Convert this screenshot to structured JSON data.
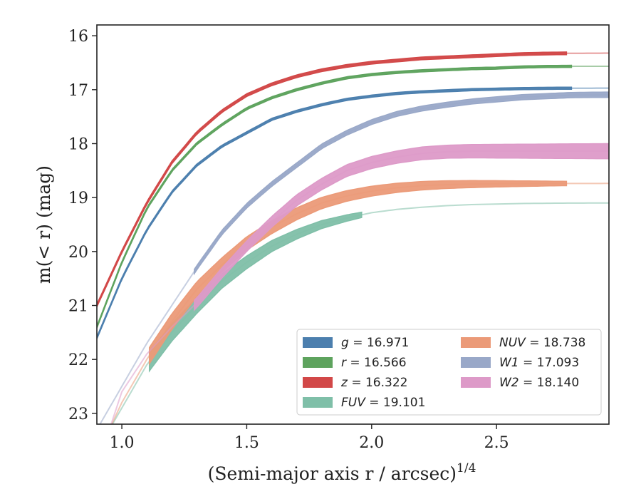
{
  "chart_data": {
    "type": "line",
    "xlabel": "(Semi-major axis r / arcsec)",
    "xlabel_superscript": "1/4",
    "ylabel": "m(< r) (mag)",
    "xlim": [
      0.9,
      2.95
    ],
    "ylim": [
      23.2,
      15.8
    ],
    "y_inverted": true,
    "grid": false,
    "legend_position": "lower-right",
    "legend_columns": 2,
    "xticks": [
      1.0,
      1.5,
      2.0,
      2.5
    ],
    "xtick_labels": [
      "1.0",
      "1.5",
      "2.0",
      "2.5"
    ],
    "yticks": [
      16,
      17,
      18,
      19,
      20,
      21,
      22,
      23
    ],
    "ytick_labels": [
      "16",
      "17",
      "18",
      "19",
      "20",
      "21",
      "22",
      "23"
    ],
    "series": [
      {
        "key": "g",
        "name": "g = 16.971",
        "color": "#4c7fae",
        "total_mag": 16.971,
        "model": [
          [
            0.9,
            21.6
          ],
          [
            1.0,
            20.5
          ],
          [
            1.1,
            19.6
          ],
          [
            1.2,
            18.9
          ],
          [
            1.3,
            18.4
          ],
          [
            1.4,
            18.05
          ],
          [
            1.5,
            17.8
          ],
          [
            1.6,
            17.55
          ],
          [
            1.7,
            17.4
          ],
          [
            1.8,
            17.28
          ],
          [
            1.9,
            17.18
          ],
          [
            2.0,
            17.12
          ],
          [
            2.1,
            17.07
          ],
          [
            2.2,
            17.04
          ],
          [
            2.3,
            17.02
          ],
          [
            2.4,
            17.0
          ],
          [
            2.5,
            16.99
          ],
          [
            2.6,
            16.98
          ],
          [
            2.7,
            16.975
          ],
          [
            2.8,
            16.972
          ],
          [
            2.95,
            16.971
          ]
        ],
        "profile_range": [
          0.9,
          2.8
        ],
        "band_width": [
          0.04,
          0.04
        ]
      },
      {
        "key": "r",
        "name": "r = 16.566",
        "color": "#5ea35e",
        "total_mag": 16.566,
        "model": [
          [
            0.9,
            21.4
          ],
          [
            1.0,
            20.2
          ],
          [
            1.1,
            19.2
          ],
          [
            1.2,
            18.5
          ],
          [
            1.3,
            18.0
          ],
          [
            1.4,
            17.65
          ],
          [
            1.5,
            17.35
          ],
          [
            1.6,
            17.15
          ],
          [
            1.7,
            17.0
          ],
          [
            1.8,
            16.88
          ],
          [
            1.9,
            16.78
          ],
          [
            2.0,
            16.72
          ],
          [
            2.1,
            16.68
          ],
          [
            2.2,
            16.65
          ],
          [
            2.3,
            16.63
          ],
          [
            2.4,
            16.61
          ],
          [
            2.5,
            16.6
          ],
          [
            2.6,
            16.58
          ],
          [
            2.7,
            16.57
          ],
          [
            2.8,
            16.567
          ],
          [
            2.95,
            16.566
          ]
        ],
        "profile_range": [
          0.9,
          2.8
        ],
        "band_width": [
          0.04,
          0.04
        ]
      },
      {
        "key": "z",
        "name": "z = 16.322",
        "color": "#d24848",
        "total_mag": 16.322,
        "model": [
          [
            0.9,
            21.0
          ],
          [
            1.0,
            20.0
          ],
          [
            1.1,
            19.1
          ],
          [
            1.2,
            18.35
          ],
          [
            1.3,
            17.8
          ],
          [
            1.4,
            17.4
          ],
          [
            1.5,
            17.1
          ],
          [
            1.6,
            16.9
          ],
          [
            1.7,
            16.75
          ],
          [
            1.8,
            16.64
          ],
          [
            1.9,
            16.56
          ],
          [
            2.0,
            16.5
          ],
          [
            2.1,
            16.46
          ],
          [
            2.2,
            16.42
          ],
          [
            2.3,
            16.4
          ],
          [
            2.4,
            16.38
          ],
          [
            2.5,
            16.36
          ],
          [
            2.6,
            16.34
          ],
          [
            2.7,
            16.33
          ],
          [
            2.8,
            16.325
          ],
          [
            2.95,
            16.322
          ]
        ],
        "profile_range": [
          0.9,
          2.78
        ],
        "band_width": [
          0.05,
          0.05
        ]
      },
      {
        "key": "FUV",
        "name": "FUV = 19.101",
        "color": "#7fbfa8",
        "total_mag": 19.101,
        "model": [
          [
            0.95,
            23.3
          ],
          [
            1.0,
            22.9
          ],
          [
            1.1,
            22.1
          ],
          [
            1.2,
            21.5
          ],
          [
            1.3,
            21.0
          ],
          [
            1.4,
            20.55
          ],
          [
            1.5,
            20.2
          ],
          [
            1.6,
            19.9
          ],
          [
            1.7,
            19.68
          ],
          [
            1.8,
            19.5
          ],
          [
            1.9,
            19.38
          ],
          [
            2.0,
            19.28
          ],
          [
            2.1,
            19.22
          ],
          [
            2.2,
            19.18
          ],
          [
            2.3,
            19.15
          ],
          [
            2.4,
            19.13
          ],
          [
            2.5,
            19.12
          ],
          [
            2.6,
            19.11
          ],
          [
            2.7,
            19.105
          ],
          [
            2.8,
            19.102
          ],
          [
            2.95,
            19.101
          ]
        ],
        "profile_range": [
          1.11,
          1.96
        ],
        "band_width": [
          0.35,
          0.1
        ]
      },
      {
        "key": "NUV",
        "name": "NUV = 18.738",
        "color": "#eb9a78",
        "total_mag": 18.738,
        "model": [
          [
            0.95,
            23.3
          ],
          [
            1.0,
            22.8
          ],
          [
            1.1,
            22.0
          ],
          [
            1.2,
            21.3
          ],
          [
            1.3,
            20.7
          ],
          [
            1.4,
            20.25
          ],
          [
            1.5,
            19.85
          ],
          [
            1.6,
            19.55
          ],
          [
            1.7,
            19.3
          ],
          [
            1.8,
            19.1
          ],
          [
            1.9,
            18.97
          ],
          [
            2.0,
            18.88
          ],
          [
            2.1,
            18.82
          ],
          [
            2.2,
            18.78
          ],
          [
            2.3,
            18.76
          ],
          [
            2.4,
            18.75
          ],
          [
            2.5,
            18.745
          ],
          [
            2.6,
            18.742
          ],
          [
            2.7,
            18.74
          ],
          [
            2.8,
            18.739
          ],
          [
            2.95,
            18.738
          ]
        ],
        "profile_range": [
          1.11,
          2.78
        ],
        "band_width": [
          0.3,
          0.08
        ]
      },
      {
        "key": "W1",
        "name": "W1 = 17.093",
        "color": "#99a8c8",
        "total_mag": 17.093,
        "model": [
          [
            0.9,
            23.3
          ],
          [
            1.0,
            22.5
          ],
          [
            1.1,
            21.7
          ],
          [
            1.2,
            21.0
          ],
          [
            1.3,
            20.3
          ],
          [
            1.4,
            19.65
          ],
          [
            1.5,
            19.15
          ],
          [
            1.6,
            18.75
          ],
          [
            1.7,
            18.4
          ],
          [
            1.8,
            18.05
          ],
          [
            1.9,
            17.8
          ],
          [
            2.0,
            17.6
          ],
          [
            2.1,
            17.45
          ],
          [
            2.2,
            17.35
          ],
          [
            2.3,
            17.28
          ],
          [
            2.4,
            17.22
          ],
          [
            2.5,
            17.18
          ],
          [
            2.6,
            17.14
          ],
          [
            2.7,
            17.12
          ],
          [
            2.8,
            17.1
          ],
          [
            2.95,
            17.093
          ]
        ],
        "profile_range": [
          1.29,
          2.95
        ],
        "band_width": [
          0.08,
          0.1
        ]
      },
      {
        "key": "W2",
        "name": "W2 = 18.140",
        "color": "#dd9ac8",
        "total_mag": 18.14,
        "model": [
          [
            0.95,
            23.3
          ],
          [
            1.0,
            22.6
          ],
          [
            1.1,
            21.9
          ],
          [
            1.2,
            21.4
          ],
          [
            1.3,
            20.95
          ],
          [
            1.4,
            20.4
          ],
          [
            1.5,
            19.9
          ],
          [
            1.6,
            19.45
          ],
          [
            1.7,
            19.05
          ],
          [
            1.8,
            18.75
          ],
          [
            1.9,
            18.5
          ],
          [
            2.0,
            18.35
          ],
          [
            2.1,
            18.25
          ],
          [
            2.2,
            18.18
          ],
          [
            2.3,
            18.15
          ],
          [
            2.4,
            18.14
          ],
          [
            2.5,
            18.14
          ],
          [
            2.6,
            18.14
          ],
          [
            2.7,
            18.14
          ],
          [
            2.8,
            18.14
          ],
          [
            2.95,
            18.14
          ]
        ],
        "profile_range": [
          1.29,
          2.95
        ],
        "band_width": [
          0.18,
          0.28
        ]
      }
    ],
    "legend_order": [
      "g",
      "r",
      "z",
      "FUV",
      "NUV",
      "W1",
      "W2"
    ]
  }
}
